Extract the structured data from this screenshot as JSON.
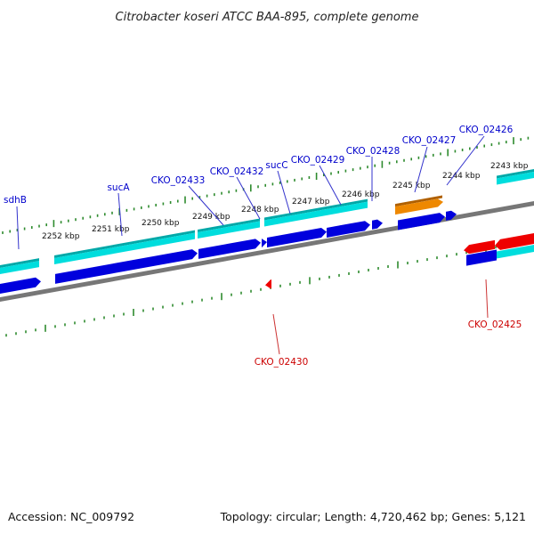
{
  "title": "Citrobacter koseri ATCC BAA-895, complete genome",
  "accession": "Accession: NC_009792",
  "summary": "Topology: circular; Length: 4,720,462 bp; Genes: 5,121",
  "colors": {
    "backbone": "#777777",
    "tick": "#2e8b2e",
    "cds": "#0000dd",
    "gene": "#00dddd",
    "gene_top": "#00a8a8",
    "rna": "#ee8800",
    "reverse": "#ee0000",
    "label_fwd": "#0000cc",
    "label_rev": "#cc0000"
  },
  "scale_labels": [
    "2252 kbp",
    "2251 kbp",
    "2250 kbp",
    "2249 kbp",
    "2248 kbp",
    "2247 kbp",
    "2246 kbp",
    "2245 kbp",
    "2244 kbp",
    "2243 kbp"
  ],
  "gene_labels": [
    {
      "text": "sdhB",
      "strand": "forward"
    },
    {
      "text": "sucA",
      "strand": "forward"
    },
    {
      "text": "CKO_02433",
      "strand": "forward"
    },
    {
      "text": "CKO_02432",
      "strand": "forward"
    },
    {
      "text": "sucC",
      "strand": "forward"
    },
    {
      "text": "CKO_02429",
      "strand": "forward"
    },
    {
      "text": "CKO_02428",
      "strand": "forward"
    },
    {
      "text": "CKO_02427",
      "strand": "forward"
    },
    {
      "text": "CKO_02426",
      "strand": "forward"
    },
    {
      "text": "CKO_02425",
      "strand": "reverse"
    },
    {
      "text": "CKO_02430",
      "strand": "reverse"
    }
  ]
}
